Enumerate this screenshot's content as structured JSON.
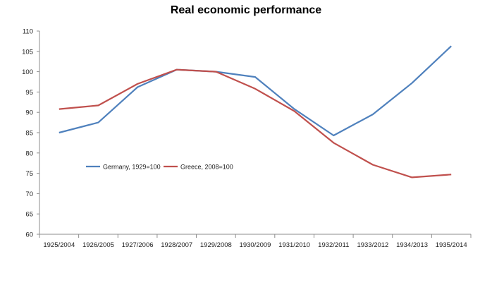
{
  "chart_data": {
    "type": "line",
    "title": "Real economic performance",
    "xlabel": "",
    "ylabel": "",
    "categories": [
      "1925/2004",
      "1926/2005",
      "1927/2006",
      "1928/2007",
      "1929/2008",
      "1930/2009",
      "1931/2010",
      "1932/2011",
      "1933/2012",
      "1934/2013",
      "1935/2014"
    ],
    "ylim": [
      60,
      110
    ],
    "yticks": [
      60,
      65,
      70,
      75,
      80,
      85,
      90,
      95,
      100,
      105,
      110
    ],
    "grid": false,
    "legend_position": "center-left",
    "series": [
      {
        "name": "Germany, 1929=100",
        "color": "#4f81bd",
        "values": [
          85.0,
          87.5,
          96.2,
          100.5,
          100.0,
          98.7,
          90.8,
          84.3,
          89.5,
          97.2,
          106.3
        ]
      },
      {
        "name": "Greece, 2008=100",
        "color": "#c0504d",
        "values": [
          90.8,
          91.7,
          97.0,
          100.5,
          100.0,
          95.8,
          90.3,
          82.5,
          77.1,
          74.0,
          74.7
        ]
      }
    ]
  }
}
